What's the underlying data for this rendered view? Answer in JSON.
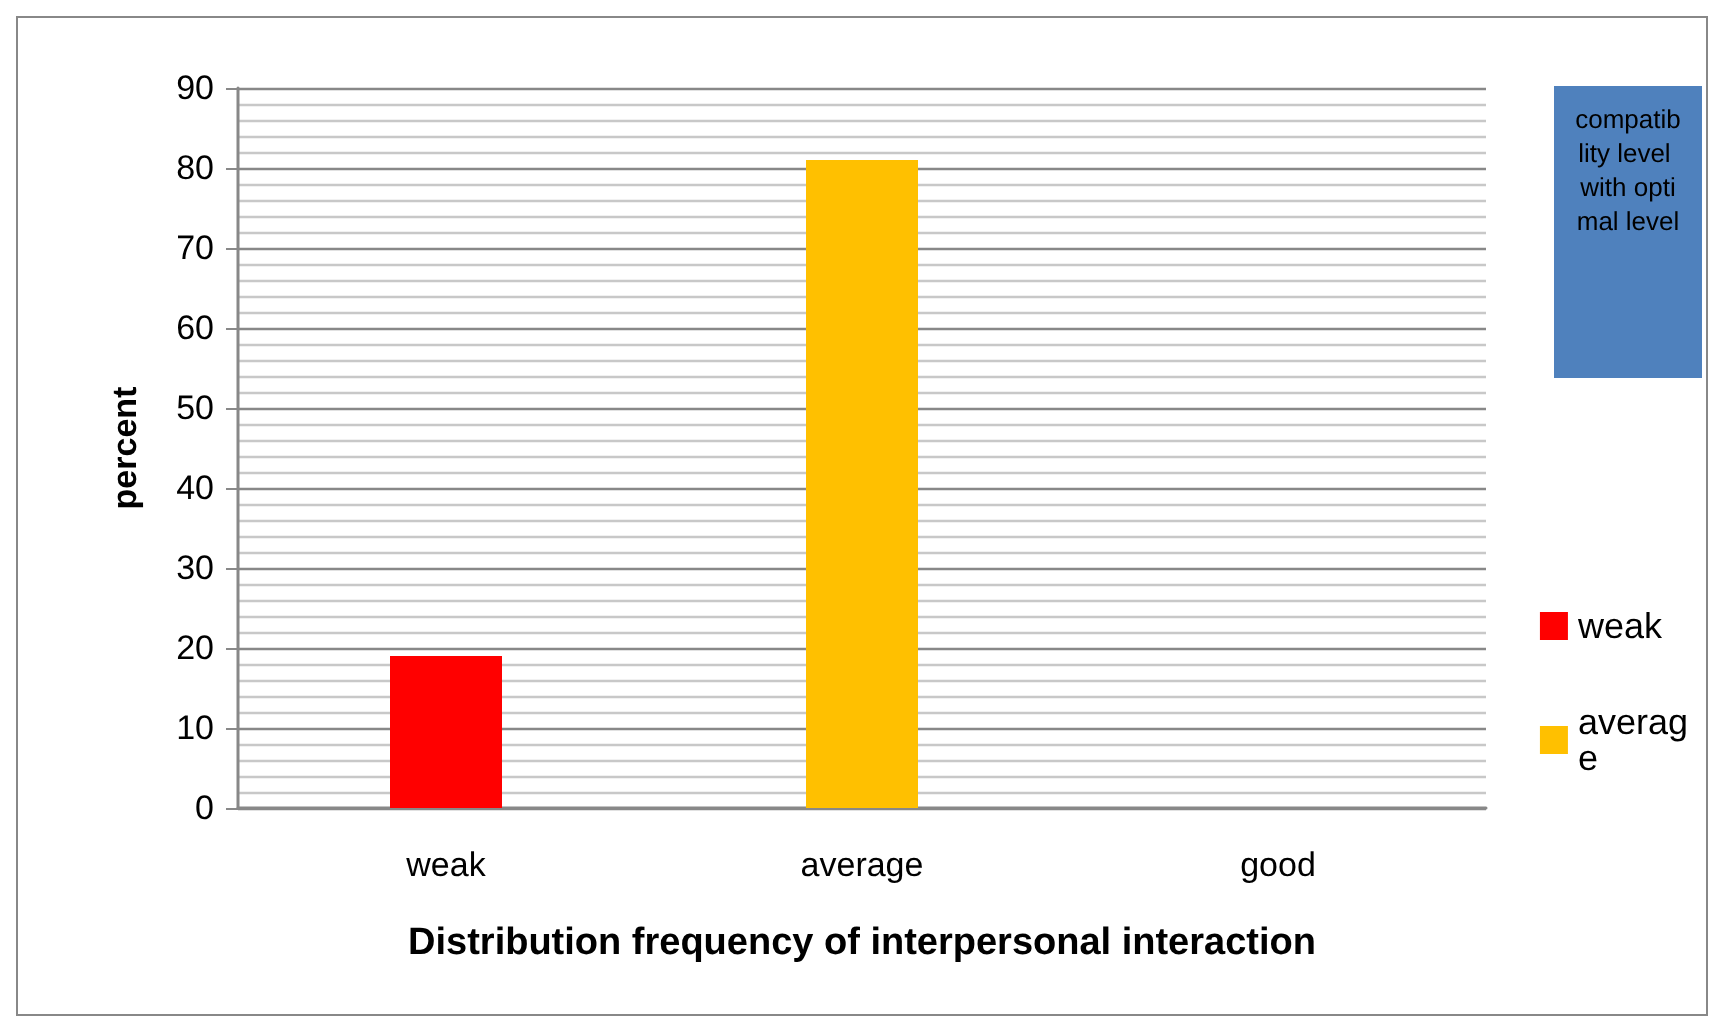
{
  "chart_data": {
    "type": "bar",
    "xlabel": "Distribution frequency of interpersonal interaction",
    "ylabel": "percent",
    "legend_title": "compatiblity level with optimal level",
    "categories": [
      "weak",
      "average",
      "good"
    ],
    "series": [
      {
        "name": "weak",
        "color": "#ff0000",
        "values": [
          19,
          null,
          null
        ]
      },
      {
        "name": "average",
        "color": "#ffc000",
        "values": [
          null,
          81,
          null
        ]
      }
    ],
    "ylim": [
      0,
      90
    ],
    "yticks": [
      0,
      10,
      20,
      30,
      40,
      50,
      60,
      70,
      80,
      90
    ],
    "grid": "y",
    "legend": "right"
  }
}
